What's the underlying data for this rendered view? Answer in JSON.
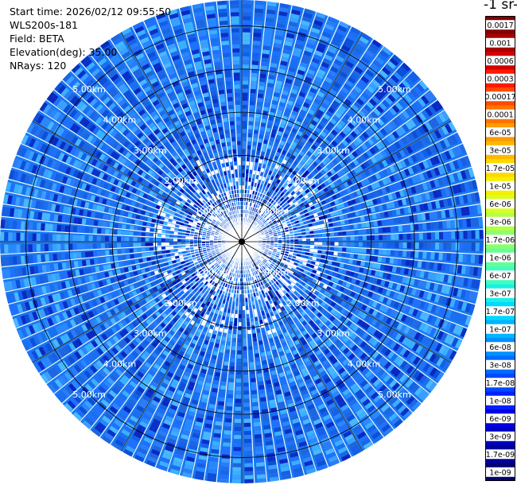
{
  "info": {
    "start_time": "Start time: 2026/02/12 09:55:50",
    "device": "WLS200s-181",
    "field": "Field: BETA",
    "elevation": "Elevation(deg): 35.00",
    "nrays": "NRays: 120"
  },
  "colorbar": {
    "title": "-1 sr-",
    "labels": [
      "0.0017",
      "0.001",
      "0.0006",
      "0.0003",
      "0.00017",
      "0.0001",
      "6e-05",
      "3e-05",
      "1.7e-05",
      "1e-05",
      "6e-06",
      "3e-06",
      "1.7e-06",
      "1e-06",
      "6e-07",
      "3e-07",
      "1.7e-07",
      "1e-07",
      "6e-08",
      "3e-08",
      "1.7e-08",
      "1e-08",
      "6e-09",
      "3e-09",
      "1.7e-09",
      "1e-09"
    ],
    "colors": [
      "#800000",
      "#a80000",
      "#d40000",
      "#ff1a00",
      "#ff4a00",
      "#ff7400",
      "#ff9a00",
      "#ffb800",
      "#ffd800",
      "#f4f000",
      "#d8ff20",
      "#b4ff48",
      "#8cff6c",
      "#64ff94",
      "#40ffbc",
      "#1cf0e4",
      "#00d8ff",
      "#00b4ff",
      "#0090ff",
      "#006cff",
      "#0048ff",
      "#0020ff",
      "#0000e8",
      "#0000c0",
      "#000098",
      "#000070"
    ]
  },
  "chart_data": {
    "type": "heatmap",
    "projection": "polar-ppi",
    "nrays": 120,
    "range_rings_km": [
      1,
      2,
      3,
      4,
      5
    ],
    "ring_labels": [
      "1.00km",
      "2.00km",
      "3.00km",
      "4.00km",
      "5.00km"
    ],
    "max_range_km": 5.6,
    "field": "BETA",
    "colormap": "jet",
    "dominant_value": "approximately 1e-08 to 6e-08",
    "grid": true
  }
}
